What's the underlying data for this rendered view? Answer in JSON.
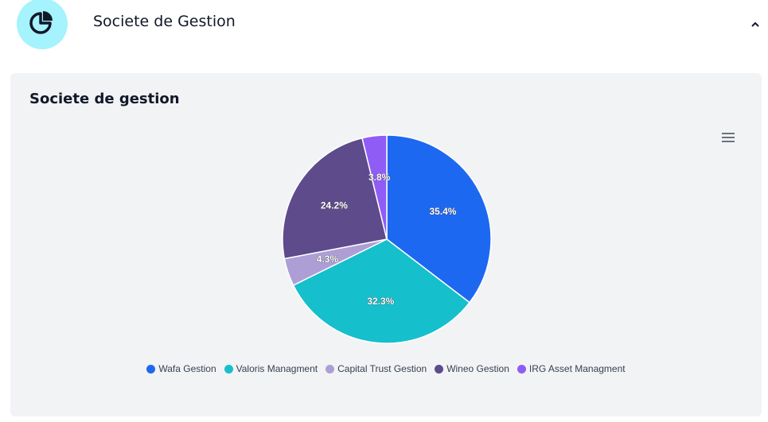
{
  "header": {
    "title": "Societe de Gestion",
    "icon": "pie-chart-icon",
    "icon_bg": "#a5f3fc",
    "toggle_icon": "chevron-up-icon"
  },
  "card": {
    "title": "Societe de gestion",
    "menu_icon": "hamburger-menu-icon"
  },
  "chart_data": {
    "type": "pie",
    "title": "Societe de gestion",
    "legend_position": "bottom",
    "slices": [
      {
        "name": "Wafa Gestion",
        "value": 35.4,
        "label": "35.4%",
        "color": "#1d68f0"
      },
      {
        "name": "Valoris Managment",
        "value": 32.3,
        "label": "32.3%",
        "color": "#16bfcc"
      },
      {
        "name": "Capital Trust Gestion",
        "value": 4.3,
        "label": "4.3%",
        "color": "#ad9fd6"
      },
      {
        "name": "Wineo Gestion",
        "value": 24.2,
        "label": "24.2%",
        "color": "#5d4b8c"
      },
      {
        "name": "IRG Asset Managment",
        "value": 3.8,
        "label": "3.8%",
        "color": "#8f5cf6"
      }
    ]
  }
}
